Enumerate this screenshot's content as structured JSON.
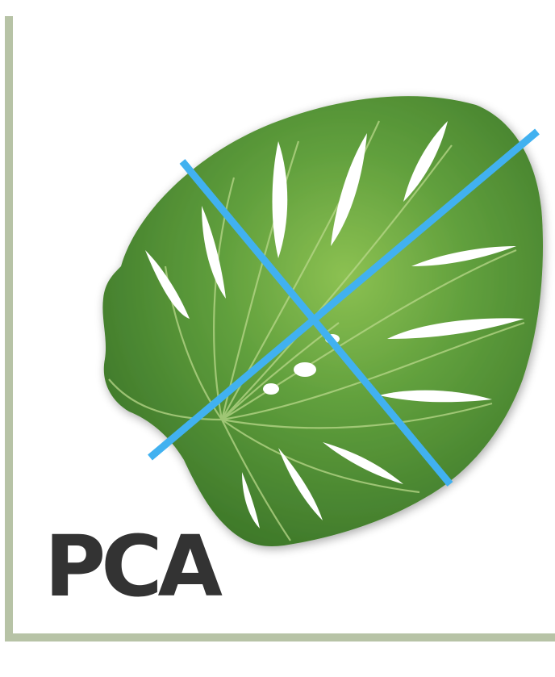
{
  "title": "PCA",
  "colors": {
    "frame": "#b7c3a6",
    "leaf_dark": "#3f7a2c",
    "leaf_mid": "#5c9a3b",
    "leaf_light": "#88bd4f",
    "vein": "#b9d88a",
    "axis_lines": "#41b1f0",
    "title": "#333333"
  },
  "icons": {
    "leaf": "monstera-leaf-icon"
  }
}
